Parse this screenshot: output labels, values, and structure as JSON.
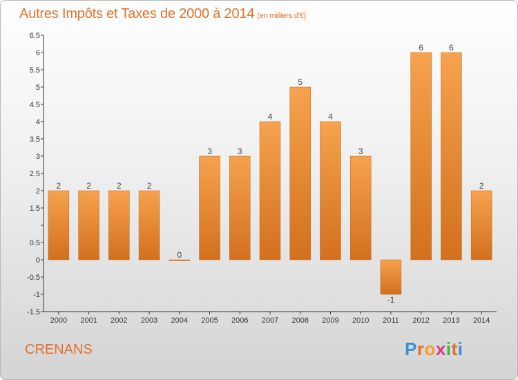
{
  "title": "Autres Impôts et Taxes de 2000 à 2014",
  "subtitle": "(en milliers d'€)",
  "commune": "CRENANS",
  "logo": {
    "letters": [
      "P",
      "r",
      "o",
      "x",
      "i",
      "t",
      "i"
    ],
    "colors": [
      "#3a8fd6",
      "#e2712b",
      "#f2a02a",
      "#d63a8a",
      "#3ab54a",
      "#e2712b",
      "#3a8fd6"
    ]
  },
  "colors": {
    "bar_top": "#f6a24e",
    "bar_bottom": "#d2701e",
    "text": "#e2712b"
  },
  "chart_data": {
    "type": "bar",
    "title": "Autres Impôts et Taxes de 2000 à 2014",
    "subtitle": "(en milliers d'€)",
    "categories": [
      "2000",
      "2001",
      "2002",
      "2003",
      "2004",
      "2005",
      "2006",
      "2007",
      "2008",
      "2009",
      "2010",
      "2011",
      "2012",
      "2013",
      "2014"
    ],
    "values": [
      2,
      2,
      2,
      2,
      0,
      3,
      3,
      4,
      5,
      4,
      3,
      -1,
      6,
      6,
      2
    ],
    "value_labels": [
      "2",
      "2",
      "2",
      "2",
      "0",
      "3",
      "3",
      "4",
      "5",
      "4",
      "3",
      "-1",
      "6",
      "6",
      "2"
    ],
    "ylim": [
      -1.5,
      6.5
    ],
    "yticks": [
      -1.5,
      -1,
      -0.5,
      0,
      0.5,
      1,
      1.5,
      2,
      2.5,
      3,
      3.5,
      4,
      4.5,
      5,
      5.5,
      6,
      6.5
    ],
    "ytick_labels": [
      "-1.5",
      "-1",
      "-0.5",
      "0",
      "0.5",
      "",
      "1.5",
      "2",
      "2.5",
      "3",
      "3.5",
      "4",
      "4.5",
      "5",
      "5.5",
      "6",
      "6.5"
    ],
    "grid": false,
    "xlabel": "",
    "ylabel": ""
  }
}
